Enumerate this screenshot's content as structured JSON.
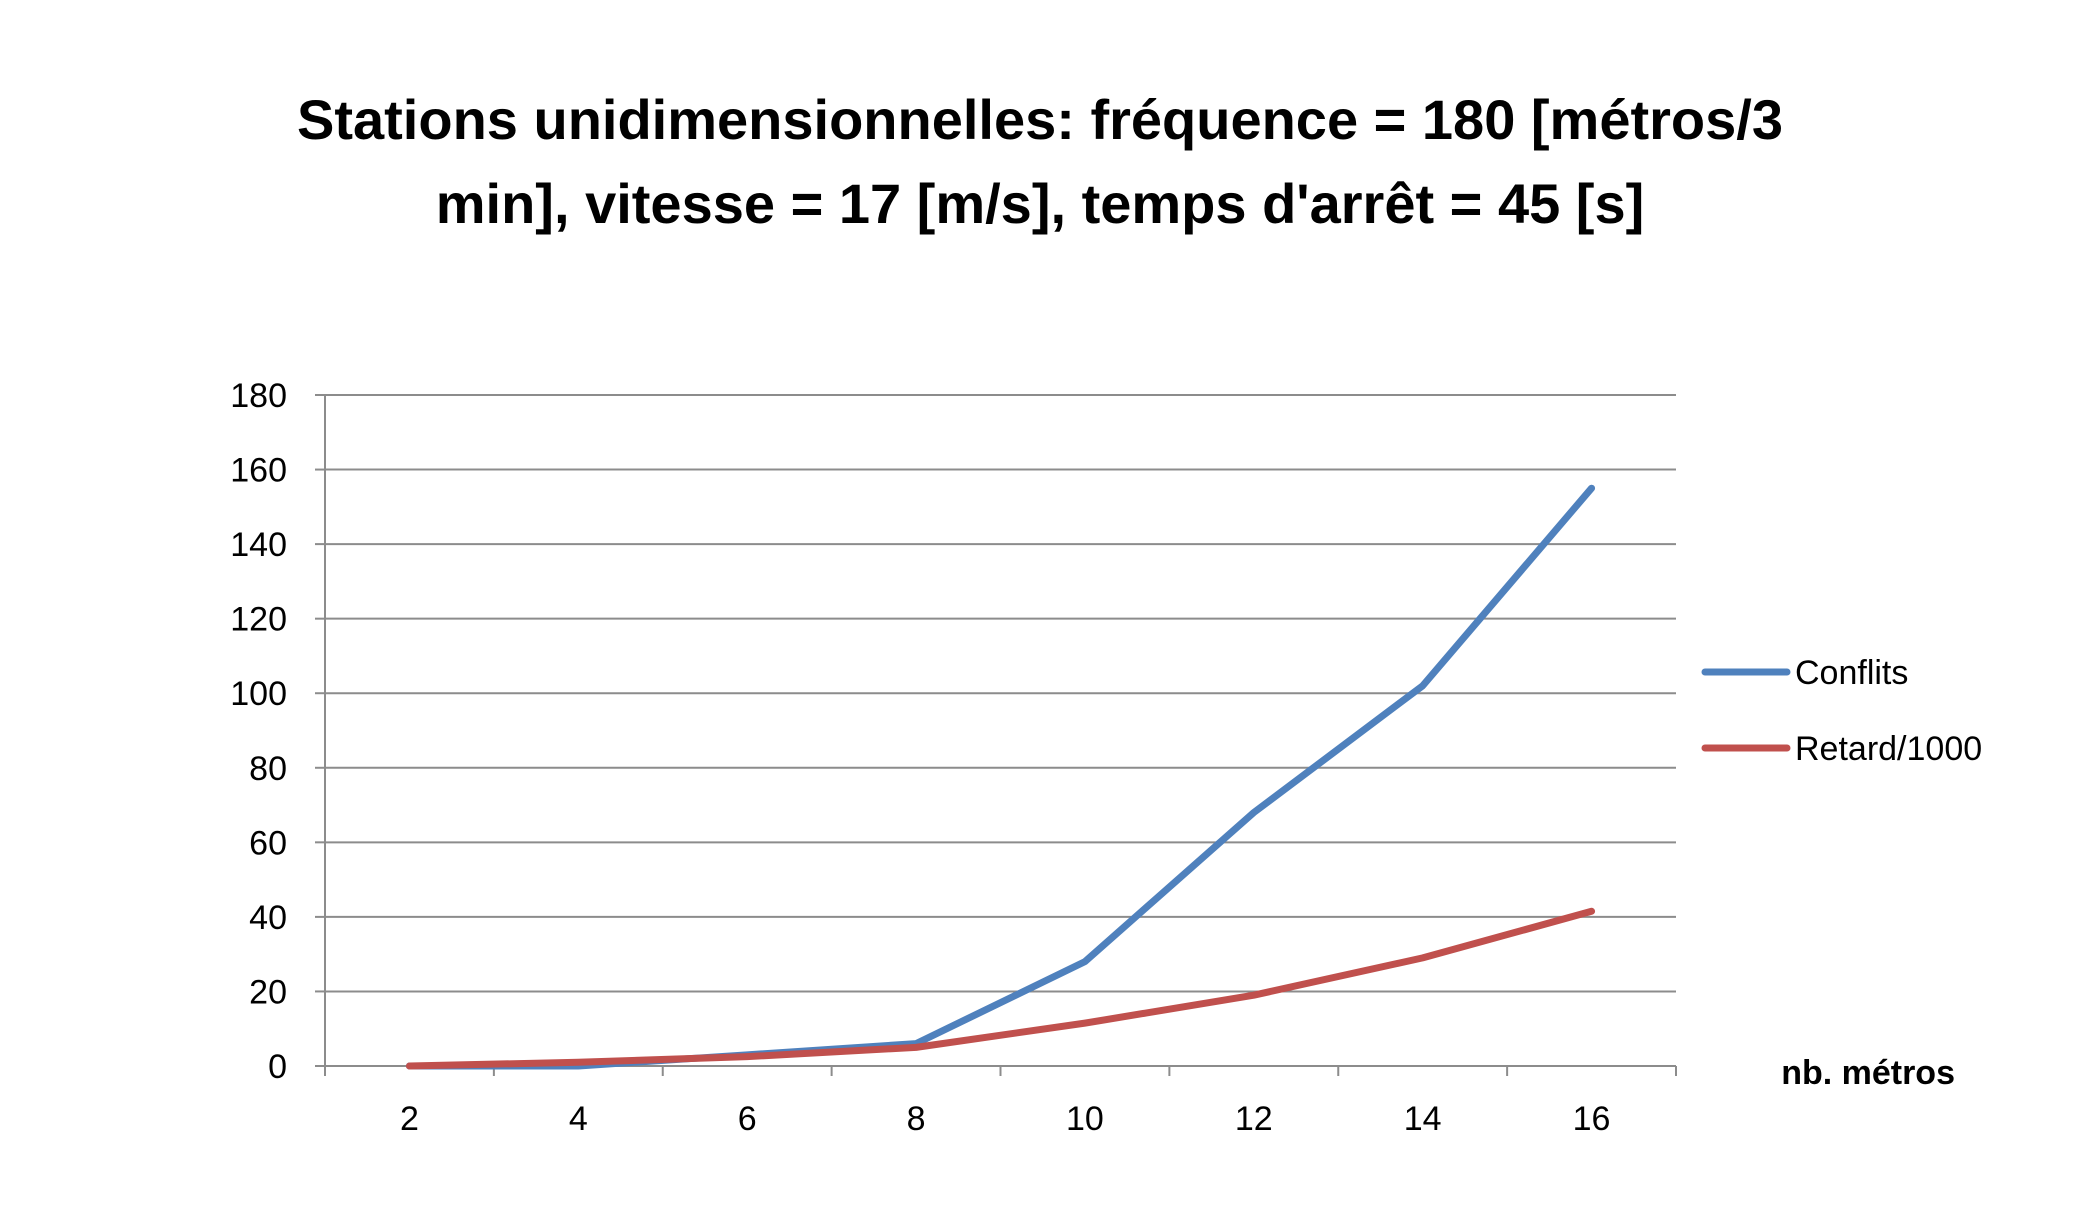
{
  "chart_data": {
    "type": "line",
    "title_line1": "Stations unidimensionnelles: fréquence = 180 [métros/3",
    "title_line2": "min], vitesse = 17 [m/s], temps d'arrêt = 45 [s]",
    "xlabel": "nb. métros",
    "ylabel": "",
    "categories": [
      "2",
      "4",
      "6",
      "8",
      "10",
      "12",
      "14",
      "16"
    ],
    "ylim": [
      0,
      180
    ],
    "yticks": [
      0,
      20,
      40,
      60,
      80,
      100,
      120,
      140,
      160,
      180
    ],
    "grid": true,
    "legend_position": "right",
    "series": [
      {
        "name": "Conflits",
        "color": "#4F81BD",
        "values": [
          0,
          0,
          3,
          6,
          28,
          68,
          102,
          155
        ]
      },
      {
        "name": "Retard/1000",
        "color": "#C0504D",
        "values": [
          0,
          1,
          2.5,
          5,
          11.5,
          19,
          29,
          41.5
        ]
      }
    ]
  }
}
